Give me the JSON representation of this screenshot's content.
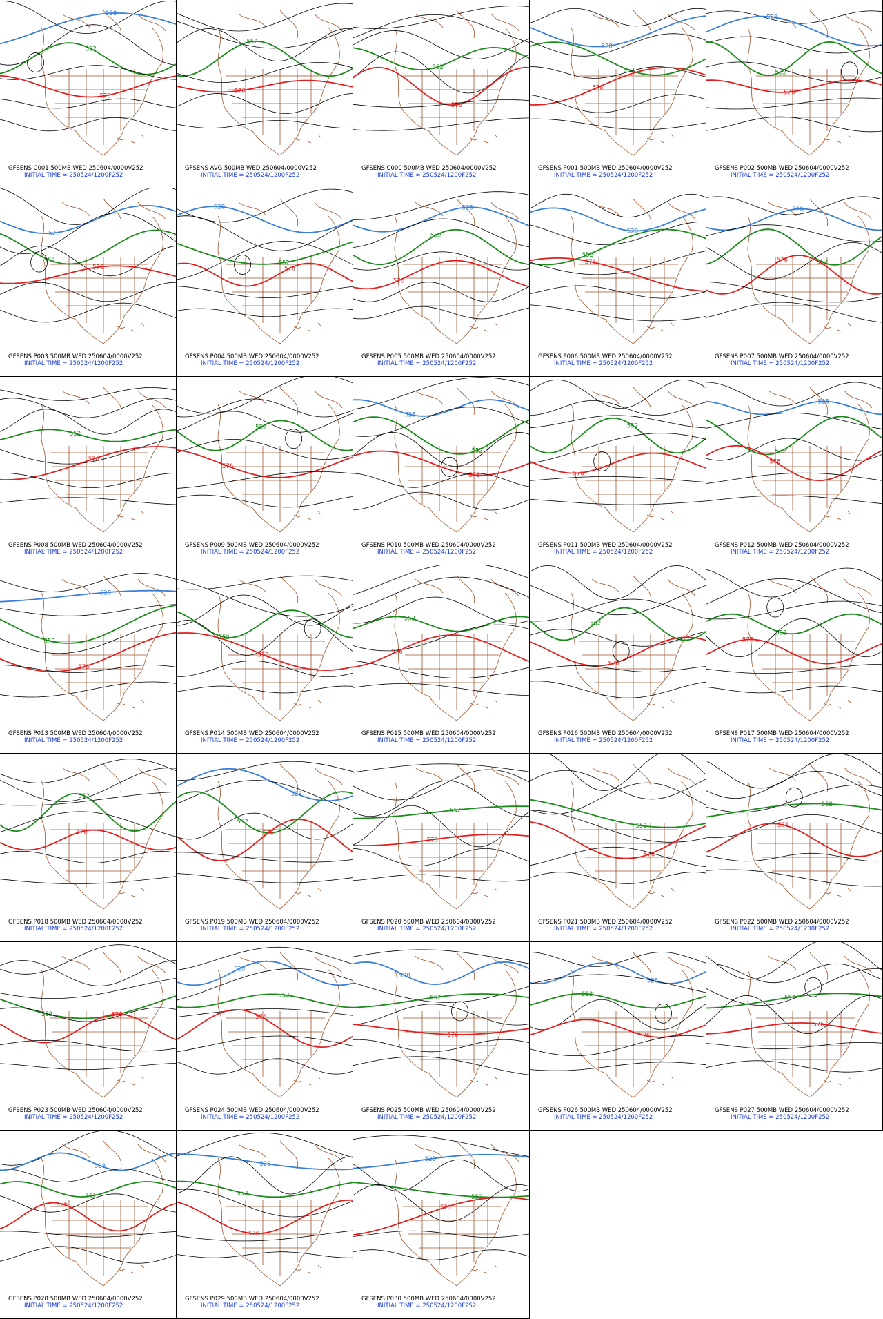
{
  "panels": [
    {
      "line1": "GFSENS C001 500MB WED 250604/0000V252",
      "line2": "INITIAL TIME = 250524/1200F252",
      "contour_labels": [
        "528",
        "552",
        "576"
      ]
    },
    {
      "line1": "GFSENS AVG 500MB WED 250604/0000V252",
      "line2": "INITIAL TIME = 250524/1200F252",
      "contour_labels": [
        "552",
        "576"
      ]
    },
    {
      "line1": "GFSENS C000 500MB WED 250604/0000V252",
      "line2": "INITIAL TIME = 250524/1200F252",
      "contour_labels": [
        "552",
        "576"
      ]
    },
    {
      "line1": "GFSENS P001 500MB WED 250604/0000V252",
      "line2": "INITIAL TIME = 250524/1200F252",
      "contour_labels": [
        "528",
        "552",
        "576"
      ]
    },
    {
      "line1": "GFSENS P002 500MB WED 250604/0000V252",
      "line2": "INITIAL TIME = 250524/1200F252",
      "contour_labels": [
        "528",
        "552",
        "576"
      ]
    },
    {
      "line1": "GFSENS P003 500MB WED 250604/0000V252",
      "line2": "INITIAL TIME = 250524/1200F252",
      "contour_labels": [
        "528",
        "552",
        "576"
      ]
    },
    {
      "line1": "GFSENS P004 500MB WED 250604/0000V252",
      "line2": "INITIAL TIME = 250524/1200F252",
      "contour_labels": [
        "528",
        "552",
        "576"
      ]
    },
    {
      "line1": "GFSENS P005 500MB WED 250604/0000V252",
      "line2": "INITIAL TIME = 250524/1200F252",
      "contour_labels": [
        "528",
        "552",
        "576"
      ]
    },
    {
      "line1": "GFSENS P006 500MB WED 250604/0000V252",
      "line2": "INITIAL TIME = 250524/1200F252",
      "contour_labels": [
        "528",
        "552",
        "576"
      ]
    },
    {
      "line1": "GFSENS P007 500MB WED 250604/0000V252",
      "line2": "INITIAL TIME = 250524/1200F252",
      "contour_labels": [
        "528",
        "552",
        "576"
      ]
    },
    {
      "line1": "GFSENS P008 500MB WED 250604/0000V252",
      "line2": "INITIAL TIME = 250524/1200F252",
      "contour_labels": [
        "552",
        "576"
      ]
    },
    {
      "line1": "GFSENS P009 500MB WED 250604/0000V252",
      "line2": "INITIAL TIME = 250524/1200F252",
      "contour_labels": [
        "552",
        "576"
      ]
    },
    {
      "line1": "GFSENS P010 500MB WED 250604/0000V252",
      "line2": "INITIAL TIME = 250524/1200F252",
      "contour_labels": [
        "528",
        "552",
        "576"
      ]
    },
    {
      "line1": "GFSENS P011 500MB WED 250604/0000V252",
      "line2": "INITIAL TIME = 250524/1200F252",
      "contour_labels": [
        "552",
        "576"
      ]
    },
    {
      "line1": "GFSENS P012 500MB WED 250604/0000V252",
      "line2": "INITIAL TIME = 250524/1200F252",
      "contour_labels": [
        "528",
        "552",
        "576"
      ]
    },
    {
      "line1": "GFSENS P013 500MB WED 250604/0000V252",
      "line2": "INITIAL TIME = 250524/1200F252",
      "contour_labels": [
        "528",
        "552",
        "576"
      ]
    },
    {
      "line1": "GFSENS P014 500MB WED 250604/0000V252",
      "line2": "INITIAL TIME = 250524/1200F252",
      "contour_labels": [
        "552",
        "576"
      ]
    },
    {
      "line1": "GFSENS P015 500MB WED 250604/0000V252",
      "line2": "INITIAL TIME = 250524/1200F252",
      "contour_labels": [
        "552",
        "576"
      ]
    },
    {
      "line1": "GFSENS P016 500MB WED 250604/0000V252",
      "line2": "INITIAL TIME = 250524/1200F252",
      "contour_labels": [
        "552",
        "576"
      ]
    },
    {
      "line1": "GFSENS P017 500MB WED 250604/0000V252",
      "line2": "INITIAL TIME = 250524/1200F252",
      "contour_labels": [
        "552",
        "576"
      ]
    },
    {
      "line1": "GFSENS P018 500MB WED 250604/0000V252",
      "line2": "INITIAL TIME = 250524/1200F252",
      "contour_labels": [
        "552",
        "576"
      ]
    },
    {
      "line1": "GFSENS P019 500MB WED 250604/0000V252",
      "line2": "INITIAL TIME = 250524/1200F252",
      "contour_labels": [
        "528",
        "552",
        "576"
      ]
    },
    {
      "line1": "GFSENS P020 500MB WED 250604/0000V252",
      "line2": "INITIAL TIME = 250524/1200F252",
      "contour_labels": [
        "552",
        "576"
      ]
    },
    {
      "line1": "GFSENS P021 500MB WED 250604/0000V252",
      "line2": "INITIAL TIME = 250524/1200F252",
      "contour_labels": [
        "552",
        "576"
      ]
    },
    {
      "line1": "GFSENS P022 500MB WED 250604/0000V252",
      "line2": "INITIAL TIME = 250524/1200F252",
      "contour_labels": [
        "552",
        "576"
      ]
    },
    {
      "line1": "GFSENS P023 500MB WED 250604/0000V252",
      "line2": "INITIAL TIME = 250524/1200F252",
      "contour_labels": [
        "552",
        "576"
      ]
    },
    {
      "line1": "GFSENS P024 500MB WED 250604/0000V252",
      "line2": "INITIAL TIME = 250524/1200F252",
      "contour_labels": [
        "528",
        "552",
        "576"
      ]
    },
    {
      "line1": "GFSENS P025 500MB WED 250604/0000V252",
      "line2": "INITIAL TIME = 250524/1200F252",
      "contour_labels": [
        "528",
        "552",
        "576"
      ]
    },
    {
      "line1": "GFSENS P026 500MB WED 250604/0000V252",
      "line2": "INITIAL TIME = 250524/1200F252",
      "contour_labels": [
        "528",
        "552",
        "576"
      ]
    },
    {
      "line1": "GFSENS P027 500MB WED 250604/0000V252",
      "line2": "INITIAL TIME = 250524/1200F252",
      "contour_labels": [
        "552",
        "576"
      ]
    },
    {
      "line1": "GFSENS P028 500MB WED 250604/0000V252",
      "line2": "INITIAL TIME = 250524/1200F252",
      "contour_labels": [
        "528",
        "552",
        "576"
      ]
    },
    {
      "line1": "GFSENS P029 500MB WED 250604/0000V252",
      "line2": "INITIAL TIME = 250524/1200F252",
      "contour_labels": [
        "528",
        "552",
        "576"
      ]
    },
    {
      "line1": "GFSENS P030 500MB WED 250604/0000V252",
      "line2": "INITIAL TIME = 250524/1200F252",
      "contour_labels": [
        "528",
        "552",
        "576"
      ]
    }
  ]
}
